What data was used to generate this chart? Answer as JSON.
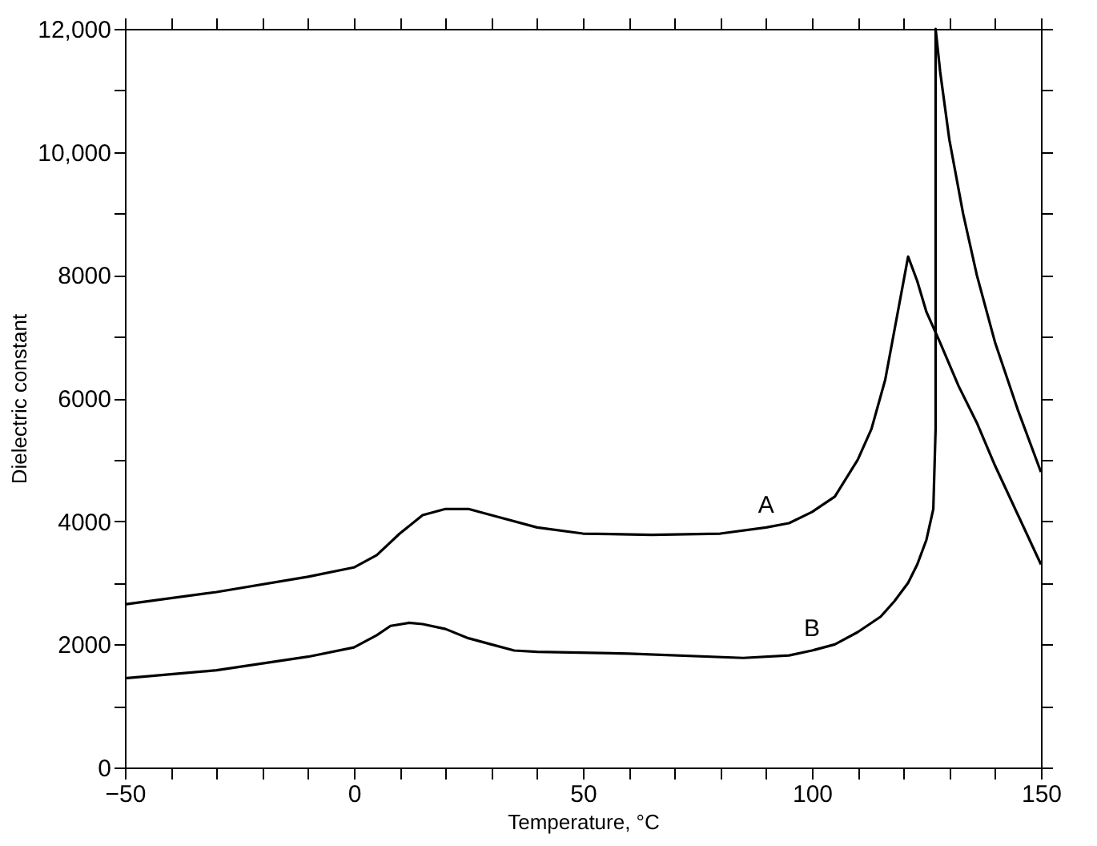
{
  "chart_data": {
    "type": "line",
    "xlabel": "Temperature, °C",
    "ylabel": "Dielectric constant",
    "xlim": [
      -50,
      150
    ],
    "ylim": [
      0,
      12000
    ],
    "xticks": [
      {
        "value": -50,
        "label": "−50"
      },
      {
        "value": -40,
        "label": null
      },
      {
        "value": -30,
        "label": null
      },
      {
        "value": -20,
        "label": null
      },
      {
        "value": -10,
        "label": null
      },
      0,
      {
        "value": 10,
        "label": null
      },
      {
        "value": 20,
        "label": null
      },
      {
        "value": 30,
        "label": null
      },
      {
        "value": 40,
        "label": null
      },
      50,
      {
        "value": 60,
        "label": null
      },
      {
        "value": 70,
        "label": null
      },
      {
        "value": 80,
        "label": null
      },
      {
        "value": 90,
        "label": null
      },
      100,
      {
        "value": 110,
        "label": null
      },
      {
        "value": 120,
        "label": null
      },
      {
        "value": 130,
        "label": null
      },
      {
        "value": 140,
        "label": null
      },
      150
    ],
    "yticks": [
      0,
      {
        "value": 1000,
        "label": null
      },
      2000,
      {
        "value": 3000,
        "label": null
      },
      4000,
      {
        "value": 5000,
        "label": null
      },
      6000,
      {
        "value": 7000,
        "label": null
      },
      8000,
      {
        "value": 9000,
        "label": null
      },
      {
        "value": 10000,
        "label": "10,000"
      },
      {
        "value": 11000,
        "label": null
      },
      {
        "value": 12000,
        "label": "12,000"
      }
    ],
    "grid": false,
    "marker": "none",
    "line_style": "solid",
    "series": [
      {
        "name": "A",
        "color": "#000000",
        "x": [
          -50,
          -30,
          -10,
          0,
          5,
          10,
          15,
          20,
          25,
          30,
          40,
          50,
          65,
          80,
          90,
          95,
          100,
          105,
          110,
          113,
          116,
          118,
          120,
          121,
          123,
          125,
          128,
          132,
          136,
          140,
          145,
          150
        ],
        "values": [
          2650,
          2850,
          3100,
          3250,
          3450,
          3800,
          4100,
          4200,
          4200,
          4100,
          3900,
          3800,
          3780,
          3800,
          3900,
          3970,
          4150,
          4400,
          5000,
          5500,
          6300,
          7100,
          7900,
          8300,
          7900,
          7400,
          6900,
          6200,
          5600,
          4900,
          4100,
          3300
        ]
      },
      {
        "name": "B",
        "color": "#000000",
        "x": [
          -50,
          -30,
          -10,
          0,
          5,
          8,
          12,
          15,
          20,
          25,
          30,
          35,
          40,
          60,
          85,
          95,
          100,
          105,
          110,
          115,
          118,
          121,
          123,
          125,
          126.5,
          127,
          127,
          128,
          130,
          133,
          136,
          140,
          145,
          150
        ],
        "values": [
          1450,
          1580,
          1800,
          1950,
          2150,
          2300,
          2350,
          2330,
          2250,
          2100,
          2000,
          1900,
          1880,
          1850,
          1780,
          1820,
          1900,
          2000,
          2200,
          2450,
          2700,
          3000,
          3300,
          3700,
          4200,
          5500,
          12000,
          11300,
          10200,
          9000,
          8000,
          6900,
          5800,
          4800
        ]
      }
    ]
  }
}
